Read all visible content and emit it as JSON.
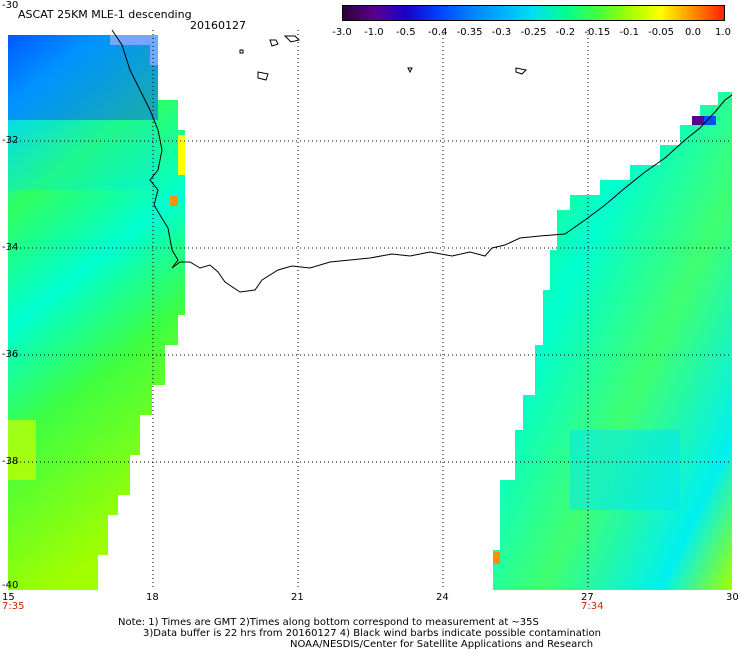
{
  "header": {
    "title": "ASCAT 25KM MLE-1 descending",
    "date": "20160127"
  },
  "colorbar": {
    "ticks": [
      "-3.0",
      "-1.0",
      "-0.5",
      "-0.4",
      "-0.35",
      "-0.3",
      "-0.25",
      "-0.2",
      "-0.15",
      "-0.1",
      "-0.05",
      "0.0",
      "1.0"
    ],
    "colors": [
      "#2a0038",
      "#5a0090",
      "#1a00c8",
      "#0040ff",
      "#0080ff",
      "#00b0ff",
      "#00e0f0",
      "#00ff90",
      "#40ff40",
      "#a0ff00",
      "#ffff00",
      "#ff9000",
      "#ff2000"
    ]
  },
  "map": {
    "lon_range": [
      15,
      30
    ],
    "lat_range": [
      -40,
      -30
    ],
    "lon_ticks": [
      "15",
      "18",
      "21",
      "24",
      "27",
      "30"
    ],
    "lat_ticks": [
      "-30",
      "-32",
      "-34",
      "-36",
      "-38",
      "-40"
    ],
    "time_labels": [
      "7:35",
      "7:34"
    ],
    "grid": "dotted",
    "colors": {
      "land_outline": "#000000",
      "no_data": "#ffffff"
    }
  },
  "footer": {
    "note_line1": "Note: 1) Times are GMT 2)Times along bottom correspond to measurement at ~35S",
    "note_line2": "3)Data buffer is 22 hrs from 20160127 4) Black wind barbs indicate possible contamination",
    "note_line3": "NOAA/NESDIS/Center for Satellite Applications and Research"
  }
}
